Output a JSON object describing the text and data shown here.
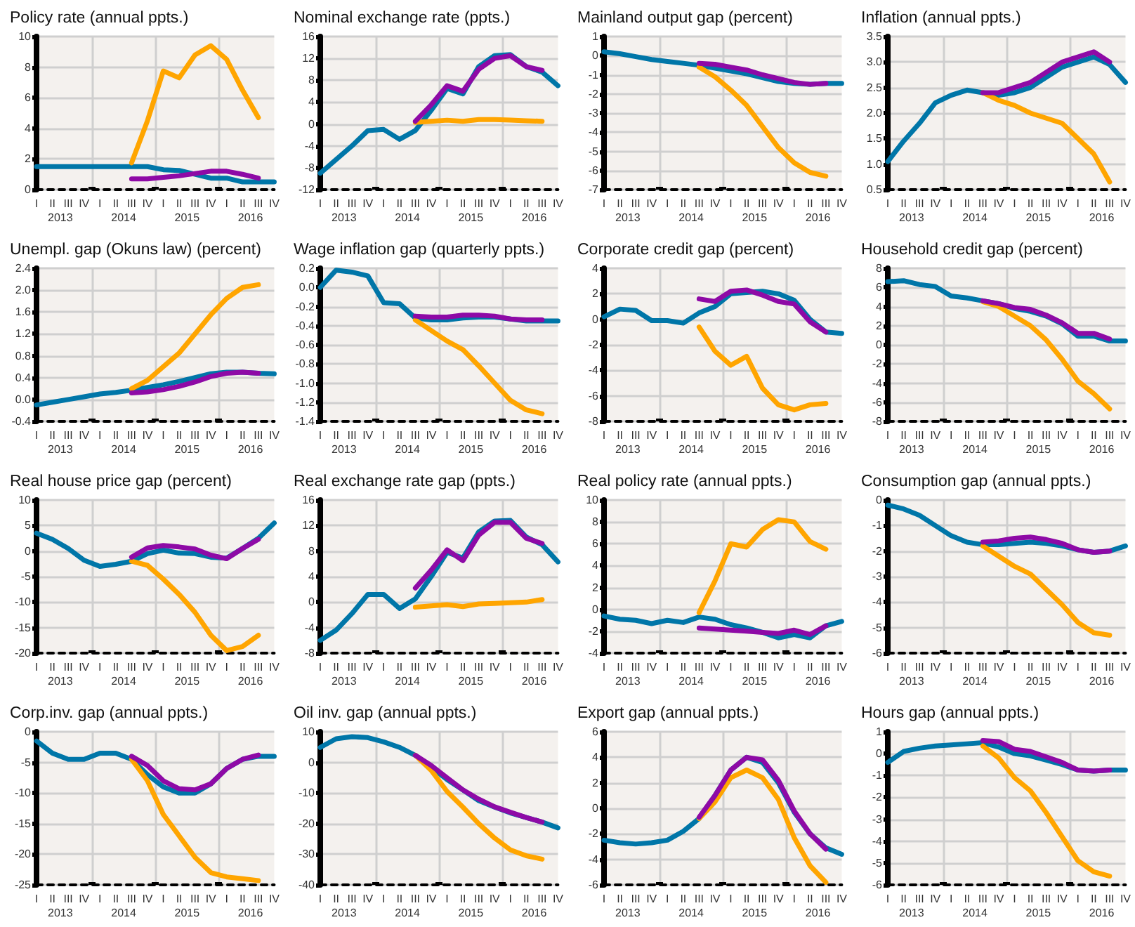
{
  "chart_data": [
    {
      "type": "line",
      "title": "Policy rate (annual ppts.)",
      "categories": [
        "I",
        "II",
        "III",
        "IV",
        "I",
        "II",
        "III",
        "IV",
        "I",
        "II",
        "III",
        "IV",
        "I",
        "II",
        "III",
        "IV"
      ],
      "annotations": [
        "2013",
        "2014",
        "2015",
        "2016"
      ],
      "ylim": [
        0,
        10
      ],
      "yticks": [
        0,
        2,
        4,
        6,
        8,
        10
      ],
      "grid": true,
      "marker": "none",
      "series": [
        {
          "color": "#0076a8",
          "values": [
            1.5,
            1.5,
            1.5,
            1.5,
            1.5,
            1.5,
            1.5,
            1.5,
            1.3,
            1.25,
            1.0,
            0.75,
            0.75,
            0.5,
            0.5,
            0.5
          ]
        },
        {
          "color": "#ffa500",
          "values": [
            null,
            null,
            null,
            null,
            null,
            null,
            1.75,
            4.5,
            7.75,
            7.3,
            8.8,
            9.4,
            8.5,
            6.5,
            4.7,
            null
          ]
        },
        {
          "color": "#8e0aa6",
          "values": [
            null,
            null,
            null,
            null,
            null,
            null,
            0.7,
            0.7,
            0.8,
            0.9,
            1.05,
            1.2,
            1.2,
            1.0,
            0.75,
            null
          ]
        }
      ]
    },
    {
      "type": "line",
      "title": "Nominal exchange rate (ppts.)",
      "categories": [
        "I",
        "II",
        "III",
        "IV",
        "I",
        "II",
        "III",
        "IV",
        "I",
        "II",
        "III",
        "IV",
        "I",
        "II",
        "III",
        "IV"
      ],
      "annotations": [
        "2013",
        "2014",
        "2015",
        "2016"
      ],
      "ylim": [
        -12,
        16
      ],
      "yticks": [
        -12,
        -8,
        -4,
        0,
        4,
        8,
        12,
        16
      ],
      "grid": true,
      "marker": "none",
      "series": [
        {
          "color": "#0076a8",
          "values": [
            -9,
            -6.5,
            -4,
            -1.2,
            -1,
            -2.8,
            -1.2,
            2.5,
            6.5,
            5.5,
            10.5,
            12.5,
            12.7,
            10.5,
            9.5,
            7
          ]
        },
        {
          "color": "#ffa500",
          "values": [
            null,
            null,
            null,
            null,
            null,
            null,
            0.3,
            0.5,
            0.7,
            0.5,
            0.8,
            0.8,
            0.7,
            0.6,
            0.5,
            null
          ]
        },
        {
          "color": "#8e0aa6",
          "values": [
            null,
            null,
            null,
            null,
            null,
            null,
            0.5,
            3.5,
            7,
            6,
            10,
            12,
            12.5,
            10.5,
            9.8,
            null
          ]
        }
      ]
    },
    {
      "type": "line",
      "title": "Mainland output gap (percent)",
      "categories": [
        "I",
        "II",
        "III",
        "IV",
        "I",
        "II",
        "III",
        "IV",
        "I",
        "II",
        "III",
        "IV",
        "I",
        "II",
        "III",
        "IV"
      ],
      "annotations": [
        "2013",
        "2014",
        "2015",
        "2016"
      ],
      "ylim": [
        -7,
        1
      ],
      "yticks": [
        -7,
        -6,
        -5,
        -4,
        -3,
        -2,
        -1,
        0,
        1
      ],
      "grid": true,
      "marker": "none",
      "series": [
        {
          "color": "#0076a8",
          "values": [
            0.2,
            0.1,
            -0.05,
            -0.2,
            -0.3,
            -0.4,
            -0.5,
            -0.65,
            -0.8,
            -0.95,
            -1.15,
            -1.35,
            -1.45,
            -1.5,
            -1.45,
            -1.45
          ]
        },
        {
          "color": "#ffa500",
          "values": [
            null,
            null,
            null,
            null,
            null,
            null,
            -0.6,
            -1.1,
            -1.8,
            -2.6,
            -3.7,
            -4.8,
            -5.6,
            -6.1,
            -6.3,
            null
          ]
        },
        {
          "color": "#8e0aa6",
          "values": [
            null,
            null,
            null,
            null,
            null,
            null,
            -0.4,
            -0.45,
            -0.6,
            -0.75,
            -1.0,
            -1.2,
            -1.4,
            -1.5,
            -1.45,
            null
          ]
        }
      ]
    },
    {
      "type": "line",
      "title": "Inflation (annual ppts.)",
      "categories": [
        "I",
        "II",
        "III",
        "IV",
        "I",
        "II",
        "III",
        "IV",
        "I",
        "II",
        "III",
        "IV",
        "I",
        "II",
        "III",
        "IV"
      ],
      "annotations": [
        "2013",
        "2014",
        "2015",
        "2016"
      ],
      "ylim": [
        0.5,
        3.5
      ],
      "yticks": [
        0.5,
        {
          "value": 1,
          "label": "1.0"
        },
        1.5,
        {
          "value": 2,
          "label": "2.0"
        },
        2.5,
        {
          "value": 3,
          "label": "3.0"
        },
        3.5
      ],
      "grid": true,
      "marker": "none",
      "series": [
        {
          "color": "#0076a8",
          "values": [
            1.05,
            1.45,
            1.8,
            2.2,
            2.35,
            2.45,
            2.4,
            2.35,
            2.4,
            2.5,
            2.7,
            2.9,
            3.0,
            3.1,
            2.95,
            2.6
          ]
        },
        {
          "color": "#ffa500",
          "values": [
            null,
            null,
            null,
            null,
            null,
            null,
            2.4,
            2.25,
            2.15,
            2.0,
            1.9,
            1.8,
            1.5,
            1.2,
            0.65,
            null
          ]
        },
        {
          "color": "#8e0aa6",
          "values": [
            null,
            null,
            null,
            null,
            null,
            null,
            2.4,
            2.4,
            2.5,
            2.6,
            2.8,
            3.0,
            3.1,
            3.2,
            3.0,
            null
          ]
        }
      ]
    },
    {
      "type": "line",
      "title": "Unempl. gap (Okuns law) (percent)",
      "categories": [
        "I",
        "II",
        "III",
        "IV",
        "I",
        "II",
        "III",
        "IV",
        "I",
        "II",
        "III",
        "IV",
        "I",
        "II",
        "III",
        "IV"
      ],
      "annotations": [
        "2013",
        "2014",
        "2015",
        "2016"
      ],
      "ylim": [
        -0.4,
        2.4
      ],
      "yticks": [
        -0.4,
        {
          "value": 0,
          "label": "0.0"
        },
        0.4,
        0.8,
        1.2,
        1.6,
        {
          "value": 2,
          "label": "2.0"
        },
        2.4
      ],
      "grid": true,
      "marker": "none",
      "series": [
        {
          "color": "#0076a8",
          "values": [
            -0.1,
            -0.05,
            0.0,
            0.05,
            0.1,
            0.13,
            0.17,
            0.22,
            0.27,
            0.33,
            0.4,
            0.47,
            0.5,
            0.5,
            0.48,
            0.47
          ]
        },
        {
          "color": "#ffa500",
          "values": [
            null,
            null,
            null,
            null,
            null,
            null,
            0.2,
            0.35,
            0.6,
            0.85,
            1.2,
            1.55,
            1.85,
            2.05,
            2.1,
            null
          ]
        },
        {
          "color": "#8e0aa6",
          "values": [
            null,
            null,
            null,
            null,
            null,
            null,
            0.12,
            0.14,
            0.18,
            0.24,
            0.32,
            0.42,
            0.48,
            0.5,
            0.48,
            null
          ]
        }
      ]
    },
    {
      "type": "line",
      "title": "Wage inflation gap (quarterly ppts.)",
      "categories": [
        "I",
        "II",
        "III",
        "IV",
        "I",
        "II",
        "III",
        "IV",
        "I",
        "II",
        "III",
        "IV",
        "I",
        "II",
        "III",
        "IV"
      ],
      "annotations": [
        "2013",
        "2014",
        "2015",
        "2016"
      ],
      "ylim": [
        -1.4,
        0.2
      ],
      "yticks": [
        -1.4,
        -1.2,
        {
          "value": -1,
          "label": "-1.0"
        },
        -0.8,
        -0.6,
        -0.4,
        -0.2,
        {
          "value": 0,
          "label": "0.0"
        },
        0.2
      ],
      "grid": true,
      "marker": "none",
      "series": [
        {
          "color": "#0076a8",
          "values": [
            0.0,
            0.18,
            0.16,
            0.12,
            -0.16,
            -0.17,
            -0.32,
            -0.34,
            -0.34,
            -0.32,
            -0.31,
            -0.31,
            -0.33,
            -0.35,
            -0.35,
            -0.35
          ]
        },
        {
          "color": "#ffa500",
          "values": [
            null,
            null,
            null,
            null,
            null,
            null,
            -0.34,
            -0.45,
            -0.56,
            -0.65,
            -0.82,
            -1.0,
            -1.18,
            -1.28,
            -1.32,
            null
          ]
        },
        {
          "color": "#8e0aa6",
          "values": [
            null,
            null,
            null,
            null,
            null,
            null,
            -0.3,
            -0.31,
            -0.31,
            -0.29,
            -0.29,
            -0.3,
            -0.33,
            -0.34,
            -0.34,
            null
          ]
        }
      ]
    },
    {
      "type": "line",
      "title": "Corporate credit gap (percent)",
      "categories": [
        "I",
        "II",
        "III",
        "IV",
        "I",
        "II",
        "III",
        "IV",
        "I",
        "II",
        "III",
        "IV",
        "I",
        "II",
        "III",
        "IV"
      ],
      "annotations": [
        "2013",
        "2014",
        "2015",
        "2016"
      ],
      "ylim": [
        -8,
        4
      ],
      "yticks": [
        -8,
        -6,
        -4,
        -2,
        0,
        2,
        4
      ],
      "grid": true,
      "marker": "none",
      "series": [
        {
          "color": "#0076a8",
          "values": [
            0.2,
            0.8,
            0.7,
            -0.1,
            -0.1,
            -0.3,
            0.5,
            1.0,
            2.0,
            2.1,
            2.2,
            2.0,
            1.5,
            0.0,
            -1.0,
            -1.1
          ]
        },
        {
          "color": "#ffa500",
          "values": [
            null,
            null,
            null,
            null,
            null,
            null,
            -0.6,
            -2.5,
            -3.6,
            -2.9,
            -5.4,
            -6.7,
            -7.1,
            -6.7,
            -6.6,
            null
          ]
        },
        {
          "color": "#8e0aa6",
          "values": [
            null,
            null,
            null,
            null,
            null,
            null,
            1.6,
            1.4,
            2.2,
            2.3,
            1.9,
            1.4,
            1.2,
            -0.2,
            -1.0,
            null
          ]
        }
      ]
    },
    {
      "type": "line",
      "title": "Household credit gap (percent)",
      "categories": [
        "I",
        "II",
        "III",
        "IV",
        "I",
        "II",
        "III",
        "IV",
        "I",
        "II",
        "III",
        "IV",
        "I",
        "II",
        "III",
        "IV"
      ],
      "annotations": [
        "2013",
        "2014",
        "2015",
        "2016"
      ],
      "ylim": [
        -8,
        8
      ],
      "yticks": [
        -8,
        -6,
        -4,
        -2,
        0,
        2,
        4,
        6,
        8
      ],
      "grid": true,
      "marker": "none",
      "series": [
        {
          "color": "#0076a8",
          "values": [
            6.6,
            6.7,
            6.3,
            6.1,
            5.1,
            4.9,
            4.6,
            4.3,
            3.8,
            3.5,
            3.0,
            2.2,
            0.9,
            0.9,
            0.4,
            0.4
          ]
        },
        {
          "color": "#ffa500",
          "values": [
            null,
            null,
            null,
            null,
            null,
            null,
            4.5,
            4.0,
            3.0,
            2.0,
            0.5,
            -1.5,
            -3.8,
            -5.1,
            -6.7,
            null
          ]
        },
        {
          "color": "#8e0aa6",
          "values": [
            null,
            null,
            null,
            null,
            null,
            null,
            4.6,
            4.3,
            3.9,
            3.7,
            3.1,
            2.3,
            1.2,
            1.2,
            0.6,
            null
          ]
        }
      ]
    },
    {
      "type": "line",
      "title": "Real house price gap (percent)",
      "categories": [
        "I",
        "II",
        "III",
        "IV",
        "I",
        "II",
        "III",
        "IV",
        "I",
        "II",
        "III",
        "IV",
        "I",
        "II",
        "III",
        "IV"
      ],
      "annotations": [
        "2013",
        "2014",
        "2015",
        "2016"
      ],
      "ylim": [
        -20,
        10
      ],
      "yticks": [
        -20,
        -15,
        -10,
        -5,
        0,
        5,
        10
      ],
      "grid": true,
      "marker": "none",
      "series": [
        {
          "color": "#0076a8",
          "values": [
            3.5,
            2.3,
            0.5,
            -1.8,
            -3,
            -2.6,
            -2,
            -0.5,
            0.2,
            -0.4,
            -0.5,
            -1.2,
            -1.4,
            0.5,
            2.5,
            5.5
          ]
        },
        {
          "color": "#ffa500",
          "values": [
            null,
            null,
            null,
            null,
            null,
            null,
            -2,
            -2.8,
            -5.5,
            -8.5,
            -12,
            -16.5,
            -19.5,
            -18.7,
            -16.5,
            null
          ]
        },
        {
          "color": "#8e0aa6",
          "values": [
            null,
            null,
            null,
            null,
            null,
            null,
            -1.2,
            0.6,
            1.1,
            0.8,
            0.4,
            -0.8,
            -1.5,
            0.5,
            2.3,
            null
          ]
        }
      ]
    },
    {
      "type": "line",
      "title": "Real exchange rate gap (ppts.)",
      "categories": [
        "I",
        "II",
        "III",
        "IV",
        "I",
        "II",
        "III",
        "IV",
        "I",
        "II",
        "III",
        "IV",
        "I",
        "II",
        "III",
        "IV"
      ],
      "annotations": [
        "2013",
        "2014",
        "2015",
        "2016"
      ],
      "ylim": [
        -8,
        16
      ],
      "yticks": [
        -8,
        -4,
        0,
        4,
        8,
        12,
        16
      ],
      "grid": true,
      "marker": "none",
      "series": [
        {
          "color": "#0076a8",
          "values": [
            -6,
            -4.4,
            -1.8,
            1.2,
            1.2,
            -1,
            0.5,
            4,
            7.8,
            6.9,
            11,
            12.7,
            12.8,
            10.2,
            9,
            6.3
          ]
        },
        {
          "color": "#ffa500",
          "values": [
            null,
            null,
            null,
            null,
            null,
            null,
            -0.8,
            -0.6,
            -0.4,
            -0.7,
            -0.3,
            -0.2,
            -0.1,
            0,
            0.4,
            null
          ]
        },
        {
          "color": "#8e0aa6",
          "values": [
            null,
            null,
            null,
            null,
            null,
            null,
            2.2,
            5,
            8.2,
            6.5,
            10.5,
            12.5,
            12.5,
            10,
            9.2,
            null
          ]
        }
      ]
    },
    {
      "type": "line",
      "title": "Real policy rate (annual ppts.)",
      "categories": [
        "I",
        "II",
        "III",
        "IV",
        "I",
        "II",
        "III",
        "IV",
        "I",
        "II",
        "III",
        "IV",
        "I",
        "II",
        "III",
        "IV"
      ],
      "annotations": [
        "2013",
        "2014",
        "2015",
        "2016"
      ],
      "ylim": [
        -4,
        10
      ],
      "yticks": [
        -4,
        -2,
        0,
        2,
        4,
        6,
        8,
        10
      ],
      "grid": true,
      "marker": "none",
      "series": [
        {
          "color": "#0076a8",
          "values": [
            -0.6,
            -0.9,
            -1.0,
            -1.3,
            -1.0,
            -1.2,
            -0.7,
            -0.9,
            -1.4,
            -1.7,
            -2.1,
            -2.6,
            -2.3,
            -2.6,
            -1.5,
            -1.1
          ]
        },
        {
          "color": "#ffa500",
          "values": [
            null,
            null,
            null,
            null,
            null,
            null,
            -0.3,
            2.6,
            6.0,
            5.7,
            7.3,
            8.2,
            8.0,
            6.2,
            5.5,
            null
          ]
        },
        {
          "color": "#8e0aa6",
          "values": [
            null,
            null,
            null,
            null,
            null,
            null,
            -1.7,
            -1.8,
            -1.9,
            -2.0,
            -2.1,
            -2.2,
            -1.9,
            -2.3,
            -1.5,
            null
          ]
        }
      ]
    },
    {
      "type": "line",
      "title": "Consumption gap (annual ppts.)",
      "categories": [
        "I",
        "II",
        "III",
        "IV",
        "I",
        "II",
        "III",
        "IV",
        "I",
        "II",
        "III",
        "IV",
        "I",
        "II",
        "III",
        "IV"
      ],
      "annotations": [
        "2013",
        "2014",
        "2015",
        "2016"
      ],
      "ylim": [
        -6,
        0
      ],
      "yticks": [
        -6,
        -5,
        -4,
        -3,
        -2,
        -1,
        0
      ],
      "grid": true,
      "marker": "none",
      "series": [
        {
          "color": "#0076a8",
          "values": [
            -0.2,
            -0.35,
            -0.6,
            -1.0,
            -1.4,
            -1.65,
            -1.75,
            -1.75,
            -1.7,
            -1.65,
            -1.7,
            -1.8,
            -1.95,
            -2.05,
            -2.0,
            -1.8
          ]
        },
        {
          "color": "#ffa500",
          "values": [
            null,
            null,
            null,
            null,
            null,
            null,
            -1.8,
            -2.2,
            -2.6,
            -2.9,
            -3.5,
            -4.1,
            -4.8,
            -5.2,
            -5.3,
            null
          ]
        },
        {
          "color": "#8e0aa6",
          "values": [
            null,
            null,
            null,
            null,
            null,
            null,
            -1.65,
            -1.6,
            -1.5,
            -1.45,
            -1.55,
            -1.7,
            -1.95,
            -2.05,
            -2.0,
            null
          ]
        }
      ]
    },
    {
      "type": "line",
      "title": "Corp.inv. gap (annual ppts.)",
      "categories": [
        "I",
        "II",
        "III",
        "IV",
        "I",
        "II",
        "III",
        "IV",
        "I",
        "II",
        "III",
        "IV",
        "I",
        "II",
        "III",
        "IV"
      ],
      "annotations": [
        "2013",
        "2014",
        "2015",
        "2016"
      ],
      "ylim": [
        -25,
        0
      ],
      "yticks": [
        -25,
        -20,
        -15,
        -10,
        -5,
        0
      ],
      "grid": true,
      "marker": "none",
      "series": [
        {
          "color": "#0076a8",
          "values": [
            -1.5,
            -3.5,
            -4.5,
            -4.5,
            -3.5,
            -3.5,
            -4.5,
            -7,
            -9,
            -10,
            -10,
            -8.5,
            -6,
            -4.5,
            -4,
            -4
          ]
        },
        {
          "color": "#ffa500",
          "values": [
            null,
            null,
            null,
            null,
            null,
            null,
            -4.5,
            -8,
            -13.5,
            -17,
            -20.5,
            -23,
            -23.7,
            -24,
            -24.3,
            null
          ]
        },
        {
          "color": "#8e0aa6",
          "values": [
            null,
            null,
            null,
            null,
            null,
            null,
            -4,
            -5.5,
            -8,
            -9.3,
            -9.5,
            -8.5,
            -6,
            -4.5,
            -3.8,
            null
          ]
        }
      ]
    },
    {
      "type": "line",
      "title": "Oil inv. gap (annual ppts.)",
      "categories": [
        "I",
        "II",
        "III",
        "IV",
        "I",
        "II",
        "III",
        "IV",
        "I",
        "II",
        "III",
        "IV",
        "I",
        "II",
        "III",
        "IV"
      ],
      "annotations": [
        "2013",
        "2014",
        "2015",
        "2016"
      ],
      "ylim": [
        -40,
        10
      ],
      "yticks": [
        -40,
        -30,
        -20,
        -10,
        0,
        10
      ],
      "grid": true,
      "marker": "none",
      "series": [
        {
          "color": "#0076a8",
          "values": [
            4.9,
            7.7,
            8.4,
            8.1,
            6.7,
            4.9,
            2.3,
            -1.6,
            -5.6,
            -9,
            -12.5,
            -14.6,
            -16.5,
            -18,
            -19.5,
            -21.4
          ]
        },
        {
          "color": "#ffa500",
          "values": [
            null,
            null,
            null,
            null,
            null,
            null,
            2.3,
            -2.6,
            -9.5,
            -14.6,
            -20,
            -24.7,
            -28.6,
            -30.5,
            -31.6,
            null
          ]
        },
        {
          "color": "#8e0aa6",
          "values": [
            null,
            null,
            null,
            null,
            null,
            null,
            2.3,
            -1,
            -5,
            -9,
            -12,
            -14.5,
            -16.3,
            -18,
            -19.5,
            null
          ]
        }
      ]
    },
    {
      "type": "line",
      "title": "Export gap (annual ppts.)",
      "categories": [
        "I",
        "II",
        "III",
        "IV",
        "I",
        "II",
        "III",
        "IV",
        "I",
        "II",
        "III",
        "IV",
        "I",
        "II",
        "III",
        "IV"
      ],
      "annotations": [
        "2013",
        "2014",
        "2015",
        "2016"
      ],
      "ylim": [
        -6,
        6
      ],
      "yticks": [
        -6,
        -4,
        -2,
        0,
        2,
        4,
        6
      ],
      "grid": true,
      "marker": "none",
      "series": [
        {
          "color": "#0076a8",
          "values": [
            -2.5,
            -2.7,
            -2.8,
            -2.7,
            -2.5,
            -1.8,
            -0.8,
            1.0,
            3.0,
            4.0,
            3.6,
            2.0,
            -0.3,
            -2.0,
            -3.1,
            -3.6
          ]
        },
        {
          "color": "#ffa500",
          "values": [
            null,
            null,
            null,
            null,
            null,
            null,
            -0.8,
            0.5,
            2.4,
            3.0,
            2.4,
            0.7,
            -2.3,
            -4.5,
            -5.8,
            null
          ]
        },
        {
          "color": "#8e0aa6",
          "values": [
            null,
            null,
            null,
            null,
            null,
            null,
            -0.7,
            1.0,
            3.0,
            4.0,
            3.8,
            2.2,
            -0.2,
            -2.0,
            -3.2,
            null
          ]
        }
      ]
    },
    {
      "type": "line",
      "title": "Hours gap (annual ppts.)",
      "categories": [
        "I",
        "II",
        "III",
        "IV",
        "I",
        "II",
        "III",
        "IV",
        "I",
        "II",
        "III",
        "IV",
        "I",
        "II",
        "III",
        "IV"
      ],
      "annotations": [
        "2013",
        "2014",
        "2015",
        "2016"
      ],
      "ylim": [
        -6,
        1
      ],
      "yticks": [
        -6,
        -5,
        -4,
        -3,
        -2,
        -1,
        0,
        1
      ],
      "grid": true,
      "marker": "none",
      "series": [
        {
          "color": "#0076a8",
          "values": [
            -0.4,
            0.1,
            0.25,
            0.35,
            0.4,
            0.45,
            0.5,
            0.3,
            0.0,
            -0.1,
            -0.3,
            -0.5,
            -0.75,
            -0.8,
            -0.75,
            -0.75
          ]
        },
        {
          "color": "#ffa500",
          "values": [
            null,
            null,
            null,
            null,
            null,
            null,
            0.35,
            -0.2,
            -1.1,
            -1.7,
            -2.7,
            -3.8,
            -4.9,
            -5.4,
            -5.6,
            null
          ]
        },
        {
          "color": "#8e0aa6",
          "values": [
            null,
            null,
            null,
            null,
            null,
            null,
            0.6,
            0.55,
            0.2,
            0.1,
            -0.15,
            -0.4,
            -0.75,
            -0.8,
            -0.75,
            null
          ]
        }
      ]
    }
  ]
}
